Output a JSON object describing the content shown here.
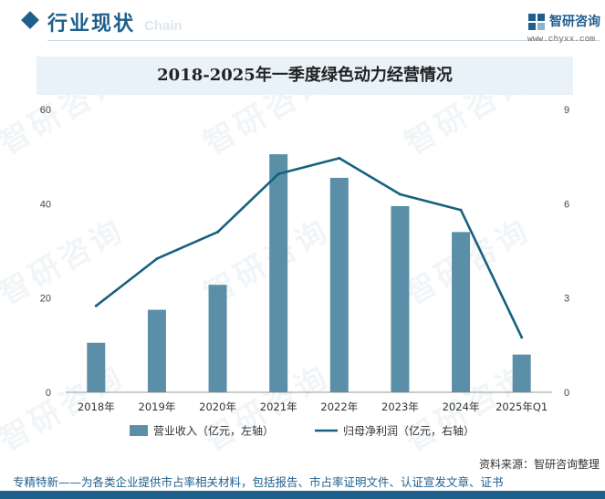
{
  "header": {
    "section_title": "行业现状",
    "section_ghost": "Chain",
    "brand_name": "智研咨询",
    "brand_url": "www.chyxx.com",
    "watermark": "智研咨询"
  },
  "chart_data": {
    "type": "bar+line",
    "title": "2018-2025年一季度绿色动力经营情况",
    "categories": [
      "2018年",
      "2019年",
      "2020年",
      "2021年",
      "2022年",
      "2023年",
      "2024年",
      "2025年Q1"
    ],
    "series": [
      {
        "name": "营业收入（亿元，左轴）",
        "type": "bar",
        "axis": "left",
        "color": "#5b8fa8",
        "values": [
          10.5,
          17.5,
          22.8,
          50.5,
          45.5,
          39.5,
          34.0,
          8.0
        ]
      },
      {
        "name": "归母净利润（亿元，右轴）",
        "type": "line",
        "axis": "right",
        "color": "#176180",
        "values": [
          2.75,
          4.25,
          5.1,
          6.95,
          7.45,
          6.3,
          5.8,
          1.75
        ]
      }
    ],
    "y_left": {
      "range": [
        0,
        60
      ],
      "ticks": [
        "0",
        "20",
        "40",
        "60"
      ]
    },
    "y_right": {
      "range": [
        0,
        9
      ],
      "ticks": [
        "0",
        "3",
        "6",
        "9"
      ]
    },
    "grid": false,
    "legend_position": "bottom"
  },
  "footer": {
    "source": "资料来源：智研咨询整理",
    "tagline": "专精特新——为各类企业提供市占率相关材料，包括报告、市占率证明文件、认证宣发文章、证书"
  }
}
